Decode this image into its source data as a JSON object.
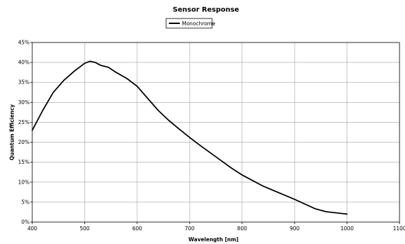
{
  "chart_data": {
    "type": "line",
    "title": "Sensor Response",
    "xlabel": "Wavelength [nm]",
    "ylabel": "Quantum Efficiency",
    "xlim": [
      400,
      1100
    ],
    "ylim": [
      0,
      45
    ],
    "x_ticks": [
      400,
      500,
      600,
      700,
      800,
      900,
      1000,
      1100
    ],
    "y_ticks": [
      "0%",
      "5%",
      "10%",
      "15%",
      "20%",
      "25%",
      "30%",
      "35%",
      "40%",
      "45%"
    ],
    "grid": true,
    "legend_position": "top-center",
    "series": [
      {
        "name": "Monochrome",
        "color": "#000000",
        "points": [
          [
            400,
            23.0
          ],
          [
            420,
            28.0
          ],
          [
            440,
            32.5
          ],
          [
            460,
            35.5
          ],
          [
            480,
            37.8
          ],
          [
            500,
            39.8
          ],
          [
            510,
            40.3
          ],
          [
            520,
            40.0
          ],
          [
            530,
            39.3
          ],
          [
            545,
            38.8
          ],
          [
            560,
            37.5
          ],
          [
            580,
            36.0
          ],
          [
            600,
            34.0
          ],
          [
            620,
            31.0
          ],
          [
            640,
            28.0
          ],
          [
            660,
            25.5
          ],
          [
            680,
            23.3
          ],
          [
            700,
            21.2
          ],
          [
            720,
            19.2
          ],
          [
            740,
            17.3
          ],
          [
            760,
            15.4
          ],
          [
            780,
            13.5
          ],
          [
            800,
            11.8
          ],
          [
            820,
            10.4
          ],
          [
            840,
            9.0
          ],
          [
            860,
            7.9
          ],
          [
            880,
            6.8
          ],
          [
            900,
            5.7
          ],
          [
            920,
            4.5
          ],
          [
            940,
            3.3
          ],
          [
            960,
            2.6
          ],
          [
            980,
            2.3
          ],
          [
            1000,
            2.0
          ]
        ]
      }
    ]
  }
}
